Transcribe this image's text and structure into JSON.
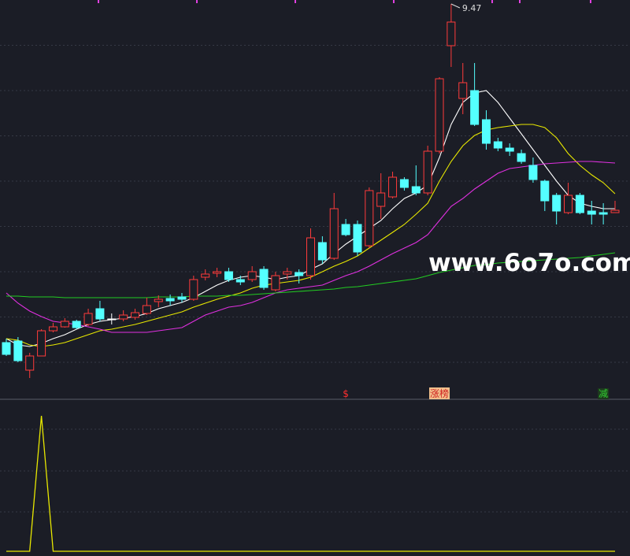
{
  "watermark": "www.6o7o.com",
  "chart_data": [
    {
      "type": "candlestick",
      "open": [
        5.17,
        5.19,
        4.82,
        5.0,
        5.32,
        5.37,
        5.44,
        5.4,
        5.6,
        5.47,
        5.47,
        5.49,
        5.54,
        5.69,
        5.73,
        5.75,
        5.72,
        6.0,
        6.05,
        6.07,
        5.97,
        5.97,
        6.1,
        5.84,
        6.04,
        6.06,
        6.02,
        6.44,
        6.24,
        6.67,
        6.67,
        6.4,
        6.9,
        7.02,
        7.24,
        7.15,
        7.07,
        7.6,
        8.94,
        8.27,
        8.37,
        8.0,
        7.72,
        7.64,
        7.57,
        7.42,
        7.22,
        7.04,
        6.82,
        7.04,
        6.84,
        6.82,
        6.82
      ],
      "high": [
        5.22,
        5.24,
        5.04,
        5.34,
        5.42,
        5.48,
        5.46,
        5.6,
        5.7,
        5.54,
        5.58,
        5.6,
        5.74,
        5.77,
        5.78,
        5.8,
        6.02,
        6.1,
        6.12,
        6.12,
        6.02,
        6.14,
        6.14,
        6.07,
        6.12,
        6.1,
        6.62,
        6.52,
        7.07,
        6.74,
        6.72,
        7.14,
        7.32,
        7.34,
        7.27,
        7.42,
        7.67,
        8.54,
        9.47,
        8.72,
        8.72,
        8.12,
        7.77,
        7.7,
        7.62,
        7.52,
        7.24,
        7.07,
        7.2,
        7.07,
        6.97,
        6.94,
        6.97
      ],
      "low": [
        5.0,
        4.92,
        4.72,
        5.0,
        5.3,
        5.36,
        5.34,
        5.38,
        5.44,
        5.4,
        5.44,
        5.46,
        5.52,
        5.62,
        5.64,
        5.68,
        5.7,
        5.96,
        6.0,
        5.94,
        5.9,
        5.94,
        5.84,
        5.82,
        5.97,
        5.92,
        5.97,
        6.17,
        6.22,
        6.52,
        6.27,
        6.37,
        6.74,
        7.0,
        7.1,
        7.04,
        7.04,
        7.57,
        8.67,
        8.07,
        7.92,
        7.62,
        7.6,
        7.54,
        7.44,
        7.2,
        6.84,
        6.67,
        6.8,
        6.8,
        6.67,
        6.67,
        6.82
      ],
      "close": [
        5.02,
        4.94,
        5.0,
        5.32,
        5.37,
        5.44,
        5.36,
        5.54,
        5.47,
        5.47,
        5.52,
        5.55,
        5.64,
        5.72,
        5.7,
        5.72,
        5.97,
        6.04,
        6.07,
        5.97,
        5.94,
        6.07,
        5.87,
        6.02,
        6.07,
        6.02,
        6.5,
        6.22,
        6.87,
        6.54,
        6.32,
        7.1,
        7.07,
        7.27,
        7.14,
        7.07,
        7.6,
        8.52,
        9.24,
        8.47,
        7.94,
        7.7,
        7.64,
        7.6,
        7.47,
        7.24,
        6.97,
        6.84,
        7.04,
        6.82,
        6.8,
        6.8,
        6.85
      ],
      "up_color": "#ff3b3b",
      "down_color": "#54ffff",
      "flat_color": "#ffffff",
      "ylim": [
        4.47,
        9.52
      ],
      "grid": true,
      "series": [
        {
          "color": "#ffffff",
          "values": [
            5.22,
            5.14,
            5.12,
            5.16,
            5.22,
            5.27,
            5.34,
            5.4,
            5.44,
            5.46,
            5.48,
            5.5,
            5.54,
            5.6,
            5.64,
            5.68,
            5.74,
            5.82,
            5.9,
            5.96,
            6.0,
            6.02,
            6.0,
            5.97,
            6.0,
            6.02,
            6.1,
            6.17,
            6.3,
            6.42,
            6.52,
            6.62,
            6.72,
            6.87,
            7.0,
            7.07,
            7.17,
            7.52,
            7.94,
            8.22,
            8.34,
            8.37,
            8.22,
            8.02,
            7.82,
            7.62,
            7.42,
            7.22,
            7.04,
            6.94,
            6.9,
            6.87,
            6.87
          ]
        },
        {
          "color": "#e8e800",
          "values": [
            5.22,
            5.2,
            5.14,
            5.12,
            5.14,
            5.17,
            5.22,
            5.27,
            5.32,
            5.34,
            5.37,
            5.4,
            5.44,
            5.48,
            5.52,
            5.56,
            5.62,
            5.67,
            5.72,
            5.76,
            5.8,
            5.86,
            5.9,
            5.92,
            5.94,
            5.96,
            6.0,
            6.07,
            6.14,
            6.2,
            6.27,
            6.37,
            6.47,
            6.57,
            6.67,
            6.8,
            6.94,
            7.22,
            7.47,
            7.67,
            7.8,
            7.87,
            7.9,
            7.92,
            7.94,
            7.94,
            7.9,
            7.77,
            7.57,
            7.42,
            7.3,
            7.2,
            7.06
          ]
        },
        {
          "color": "#e030e0",
          "values": [
            5.8,
            5.67,
            5.57,
            5.5,
            5.44,
            5.42,
            5.4,
            5.37,
            5.34,
            5.3,
            5.3,
            5.3,
            5.3,
            5.32,
            5.34,
            5.36,
            5.44,
            5.52,
            5.57,
            5.62,
            5.64,
            5.68,
            5.74,
            5.8,
            5.84,
            5.86,
            5.88,
            5.9,
            5.96,
            6.02,
            6.07,
            6.14,
            6.22,
            6.3,
            6.37,
            6.44,
            6.54,
            6.72,
            6.9,
            7.0,
            7.12,
            7.22,
            7.32,
            7.38,
            7.4,
            7.42,
            7.44,
            7.45,
            7.46,
            7.47,
            7.47,
            7.46,
            7.45
          ]
        },
        {
          "color": "#22cc22",
          "values": [
            5.76,
            5.76,
            5.75,
            5.75,
            5.75,
            5.74,
            5.74,
            5.74,
            5.74,
            5.74,
            5.74,
            5.74,
            5.74,
            5.75,
            5.75,
            5.75,
            5.76,
            5.76,
            5.76,
            5.77,
            5.77,
            5.78,
            5.79,
            5.8,
            5.81,
            5.82,
            5.83,
            5.84,
            5.85,
            5.87,
            5.88,
            5.9,
            5.92,
            5.94,
            5.96,
            5.98,
            6.02,
            6.06,
            6.09,
            6.12,
            6.15,
            6.16,
            6.18,
            6.19,
            6.2,
            6.21,
            6.22,
            6.23,
            6.24,
            6.25,
            6.27,
            6.29,
            6.31
          ]
        }
      ],
      "signals": [
        null,
        null,
        null,
        null,
        null,
        null,
        null,
        null,
        null,
        null,
        null,
        null,
        null,
        null,
        null,
        null,
        null,
        null,
        null,
        null,
        null,
        null,
        null,
        null,
        null,
        null,
        null,
        null,
        null,
        {
          "label": "$",
          "color": "#ff3030"
        },
        null,
        null,
        null,
        null,
        null,
        null,
        null,
        {
          "label": "涨榜",
          "color": "#d02020",
          "background": "#f2c08c"
        },
        null,
        null,
        null,
        null,
        null,
        null,
        null,
        null,
        null,
        null,
        null,
        null,
        null,
        {
          "label": "减",
          "color": "#30d030",
          "background": "#1e3a1e"
        },
        null,
        null
      ]
    },
    {
      "type": "line",
      "ylim": [
        0,
        1
      ],
      "grid": true,
      "series": [
        {
          "color": "#e8e800",
          "values": [
            0,
            0,
            0,
            1,
            0,
            0,
            0,
            0,
            0,
            0,
            0,
            0,
            0,
            0,
            0,
            0,
            0,
            0,
            0,
            0,
            0,
            0,
            0,
            0,
            0,
            0,
            0,
            0,
            0,
            0,
            0,
            0,
            0,
            0,
            0,
            0,
            0,
            0,
            0,
            0,
            0,
            0,
            0,
            0,
            0,
            0,
            0,
            0,
            0,
            0,
            0,
            0,
            0
          ]
        }
      ]
    }
  ]
}
